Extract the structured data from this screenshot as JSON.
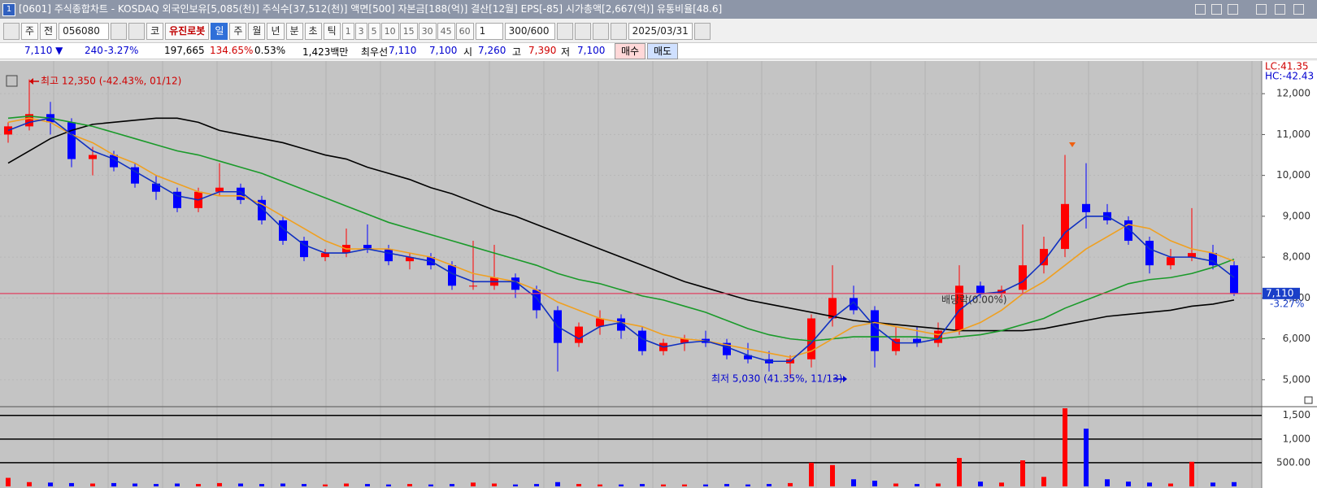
{
  "header": {
    "title": "[0601] 주식종합차트 - KOSDAQ 외국인보유[5,085(천)] 주식수[37,512(천)] 액면[500] 자본금[188(억)] 결산[12월] EPS[-85] 시가총액[2,667(억)] 유통비율[48.6]",
    "window_number": "1"
  },
  "toolbar": {
    "period_type": "주",
    "prev": "전",
    "code": "056080",
    "market": "코",
    "name": "유진로봇",
    "periods": [
      "일",
      "주",
      "월",
      "년",
      "분",
      "초",
      "틱"
    ],
    "intervals": [
      "1",
      "3",
      "5",
      "10",
      "15",
      "30",
      "45",
      "60"
    ],
    "interval_value": "1",
    "count": "300/600",
    "date": "2025/03/31"
  },
  "info": {
    "price": "7,110 ▼",
    "change": "240",
    "change_pct": "-3.27%",
    "volume": "197,665",
    "volume_ratio": "134.65%",
    "turnover": "0.53%",
    "amount": "1,423백만",
    "best_label": "최우선",
    "best_ask": "7,110",
    "best_bid": "7,100",
    "open_label": "시",
    "open": "7,260",
    "high_label": "고",
    "high": "7,390",
    "low_label": "저",
    "low": "7,100",
    "buy": "매수",
    "sell": "매도"
  },
  "chart_data": {
    "type": "candlestick",
    "categories": [
      null,
      null,
      null,
      null,
      null,
      null,
      null,
      null,
      null,
      null,
      null,
      null,
      null,
      null,
      null,
      null,
      null,
      null,
      null,
      null,
      null,
      null,
      null,
      null,
      null,
      null,
      null,
      null,
      null,
      null,
      null,
      null,
      null,
      null,
      null,
      null,
      null,
      null,
      null,
      null,
      null,
      null,
      null,
      null,
      null,
      null,
      null,
      null,
      null,
      null,
      null,
      null,
      null,
      null,
      null,
      null,
      null,
      null,
      null
    ],
    "open": [
      11000,
      11200,
      11500,
      11300,
      10400,
      10500,
      10200,
      9800,
      9600,
      9200,
      9600,
      9700,
      9400,
      8900,
      8400,
      8000,
      8100,
      8300,
      8200,
      7900,
      8000,
      7800,
      7300,
      7300,
      7500,
      7200,
      6700,
      5900,
      6300,
      6500,
      6200,
      5700,
      5900,
      6000,
      5900,
      5600,
      5500,
      5400,
      5500,
      6500,
      7000,
      6700,
      5700,
      6000,
      5900,
      6200,
      7300,
      7100,
      7200,
      7800,
      8200,
      9300,
      9100,
      8900,
      8400,
      7800,
      8000,
      8100,
      7800
    ],
    "high": [
      11300,
      12350,
      11800,
      11400,
      10700,
      10600,
      10300,
      10000,
      9700,
      9700,
      10300,
      9800,
      9500,
      9000,
      8500,
      8200,
      8700,
      8800,
      8300,
      8100,
      8100,
      7900,
      8400,
      8300,
      7600,
      7300,
      6800,
      6400,
      6700,
      6600,
      6300,
      6000,
      6100,
      6200,
      6000,
      5900,
      5700,
      5600,
      6600,
      7800,
      7300,
      6800,
      6300,
      6300,
      6400,
      7800,
      7400,
      7300,
      8800,
      8500,
      10500,
      10300,
      9300,
      9000,
      8500,
      8200,
      9200,
      8300,
      7900
    ],
    "low": [
      10800,
      11100,
      11000,
      10200,
      10000,
      10100,
      9700,
      9400,
      9100,
      9100,
      9500,
      9300,
      8800,
      8300,
      7900,
      7900,
      8000,
      8100,
      7800,
      7700,
      7700,
      7200,
      7200,
      7200,
      7000,
      6500,
      5200,
      5800,
      6100,
      6000,
      5600,
      5600,
      5700,
      5800,
      5500,
      5400,
      5200,
      5030,
      5300,
      6300,
      6600,
      5300,
      5600,
      5800,
      5800,
      6100,
      7000,
      7000,
      7100,
      7600,
      8000,
      8700,
      8800,
      8300,
      7600,
      7700,
      7900,
      7700,
      7050
    ],
    "close": [
      11200,
      11500,
      11300,
      10400,
      10500,
      10200,
      9800,
      9600,
      9200,
      9600,
      9700,
      9400,
      8900,
      8400,
      8000,
      8100,
      8300,
      8200,
      7900,
      8000,
      7800,
      7300,
      7300,
      7500,
      7200,
      6700,
      5900,
      6300,
      6500,
      6200,
      5700,
      5900,
      6000,
      5900,
      5600,
      5500,
      5400,
      5500,
      6500,
      7000,
      6700,
      5700,
      6000,
      5900,
      6200,
      7300,
      7100,
      7200,
      7800,
      8200,
      9300,
      9100,
      8900,
      8400,
      7800,
      8000,
      8100,
      7800,
      7110
    ],
    "up_color": "#ff0000",
    "down_color": "#0000ff",
    "ylim": [
      4380,
      12740
    ],
    "yticks": [
      {
        "value": 5000,
        "label": "5,000"
      },
      {
        "value": 6000,
        "label": "6,000"
      },
      {
        "value": 7000,
        "label": "7,000"
      },
      {
        "value": 8000,
        "label": "8,000"
      },
      {
        "value": 9000,
        "label": "9,000"
      },
      {
        "value": 10000,
        "label": "10,000"
      },
      {
        "value": 11000,
        "label": "11,000"
      },
      {
        "value": 12000,
        "label": "12,000"
      }
    ],
    "grid": true,
    "series": [
      {
        "color": "#000000",
        "values": [
          10300,
          10600,
          10900,
          11100,
          11250,
          11300,
          11350,
          11400,
          11400,
          11300,
          11100,
          11000,
          10900,
          10800,
          10650,
          10500,
          10400,
          10200,
          10050,
          9900,
          9700,
          9550,
          9350,
          9150,
          9000,
          8800,
          8600,
          8400,
          8200,
          8000,
          7800,
          7600,
          7400,
          7250,
          7100,
          6950,
          6850,
          6750,
          6650,
          6550,
          6450,
          6400,
          6350,
          6300,
          6250,
          6200,
          6200,
          6200,
          6200,
          6250,
          6350,
          6450,
          6550,
          6600,
          6650,
          6700,
          6800,
          6850,
          6950
        ]
      },
      {
        "color": "#1a9a2a",
        "values": [
          11400,
          11450,
          11400,
          11300,
          11200,
          11050,
          10900,
          10750,
          10600,
          10500,
          10350,
          10200,
          10050,
          9850,
          9650,
          9450,
          9250,
          9050,
          8850,
          8700,
          8550,
          8400,
          8250,
          8100,
          7950,
          7800,
          7600,
          7450,
          7350,
          7200,
          7050,
          6950,
          6800,
          6650,
          6450,
          6250,
          6100,
          6000,
          5950,
          6000,
          6050,
          6050,
          6050,
          6050,
          6000,
          6050,
          6100,
          6200,
          6350,
          6500,
          6750,
          6950,
          7150,
          7350,
          7450,
          7500,
          7600,
          7750,
          7950
        ]
      },
      {
        "color": "#f0a020",
        "values": [
          11300,
          11400,
          11300,
          11000,
          10800,
          10500,
          10300,
          10000,
          9800,
          9600,
          9500,
          9500,
          9300,
          9000,
          8700,
          8400,
          8200,
          8200,
          8200,
          8100,
          8000,
          7800,
          7600,
          7500,
          7400,
          7200,
          6900,
          6700,
          6500,
          6400,
          6300,
          6100,
          6000,
          5950,
          5850,
          5750,
          5650,
          5550,
          5700,
          6000,
          6300,
          6400,
          6300,
          6200,
          6100,
          6200,
          6400,
          6700,
          7100,
          7400,
          7800,
          8200,
          8500,
          8800,
          8700,
          8400,
          8200,
          8100,
          7900
        ]
      },
      {
        "color": "#1030c0",
        "values": [
          11100,
          11300,
          11400,
          11000,
          10600,
          10400,
          10100,
          9800,
          9500,
          9400,
          9600,
          9600,
          9200,
          8700,
          8300,
          8100,
          8100,
          8200,
          8100,
          8000,
          7900,
          7600,
          7400,
          7400,
          7400,
          7000,
          6300,
          6000,
          6300,
          6400,
          6000,
          5800,
          5900,
          5950,
          5800,
          5600,
          5450,
          5450,
          5900,
          6500,
          6900,
          6300,
          5900,
          5900,
          6000,
          6700,
          7100,
          7150,
          7400,
          7900,
          8600,
          9000,
          9000,
          8700,
          8200,
          8000,
          8000,
          7900,
          7500
        ]
      }
    ],
    "annotations": {
      "high": "최고 12,350 (-42.43%, 01/12)",
      "low": "최저 5,030 (41.35%, 11/13)",
      "dividend": "배당락(0.00%)"
    },
    "lc_label": "LC:41.35",
    "hc_label": "HC:-42.43",
    "last_label": "7,110",
    "last_change": "-3.27%",
    "volume": {
      "values": [
        180,
        90,
        80,
        70,
        60,
        70,
        60,
        50,
        60,
        50,
        70,
        60,
        50,
        60,
        50,
        40,
        60,
        50,
        40,
        50,
        40,
        50,
        80,
        60,
        40,
        50,
        90,
        50,
        40,
        40,
        50,
        40,
        40,
        40,
        50,
        40,
        50,
        70,
        500,
        450,
        150,
        120,
        60,
        50,
        60,
        600,
        100,
        80,
        550,
        200,
        1650,
        1220,
        150,
        100,
        80,
        60,
        520,
        80,
        90
      ],
      "ylim": [
        0,
        1650
      ],
      "yticks": [
        {
          "value": 500,
          "label": "500.00"
        },
        {
          "value": 1000,
          "label": "1,000"
        },
        {
          "value": 1500,
          "label": "1,500"
        }
      ]
    }
  }
}
